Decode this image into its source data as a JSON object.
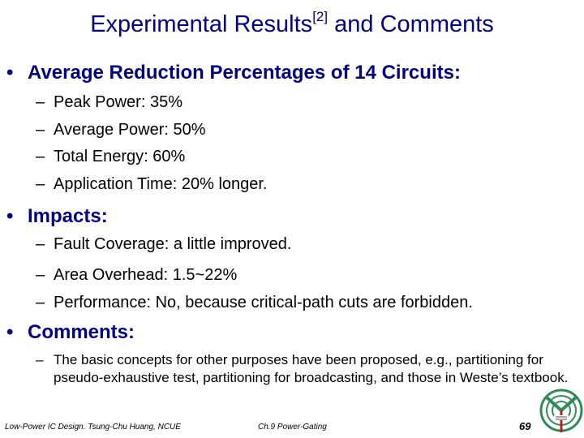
{
  "slide": {
    "title_main": "Experimental Results",
    "title_sup": "[2]",
    "title_rest": " and Comments"
  },
  "section1": {
    "bullet": "•",
    "heading": "Average Reduction Percentages of 14 Circuits:",
    "items": [
      "Peak Power: 35%",
      "Average Power: 50%",
      "Total Energy: 60%",
      "Application Time: 20% longer."
    ]
  },
  "section2": {
    "bullet": "•",
    "heading": "Impacts:",
    "items": [
      "Fault Coverage: a little improved.",
      "Area Overhead: 1.5~22%",
      "Performance: No, because critical-path cuts are forbidden."
    ]
  },
  "section3": {
    "bullet": "•",
    "heading": "Comments:",
    "items": [
      "The basic concepts for other purposes have been proposed, e.g., partitioning for pseudo-exhaustive test, partitioning for broadcasting, and those in Weste’s textbook."
    ]
  },
  "dash": "–",
  "footer": {
    "course": "Low-Power IC Design. Tsung-Chu Huang, NCUE",
    "chapter": "Ch.9 Power-Gating",
    "page": "69"
  },
  "colors": {
    "title": "#000080",
    "heading": "#000080",
    "logo_green": "#2e8b57",
    "logo_red": "#b22222"
  },
  "icons": {
    "logo": "university-logo-icon"
  }
}
